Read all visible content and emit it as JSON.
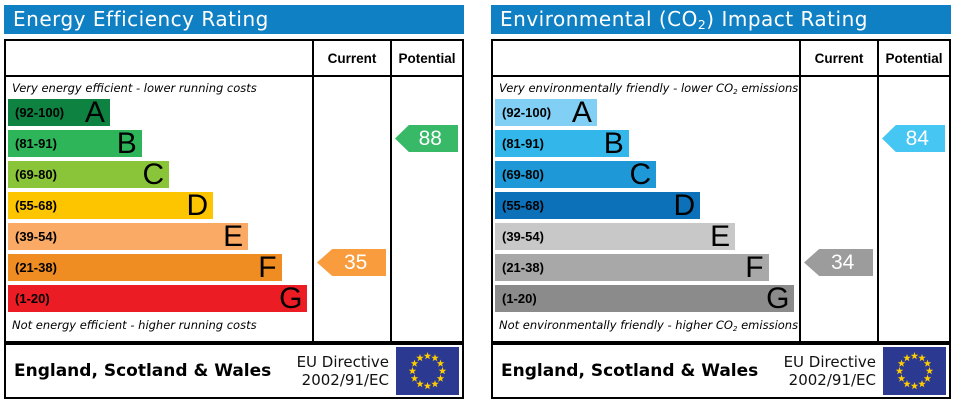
{
  "colors": {
    "header_bg": "#1080c4",
    "header_text": "#ffffff",
    "eu_flag_bg": "#2b3990",
    "eu_flag_star": "#ffcc00"
  },
  "panels": [
    {
      "title_pre": "Energy Efficiency Rating",
      "title_sub": "",
      "title_post": "",
      "columns": {
        "current": "Current",
        "potential": "Potential"
      },
      "top_hint_pre": "Very energy efficient - lower running costs",
      "top_hint_sub": "",
      "top_hint_post": "",
      "bottom_hint_pre": "Not energy efficient - higher running costs",
      "bottom_hint_sub": "",
      "bottom_hint_post": "",
      "bands": [
        {
          "range": "(92-100)",
          "letter": "A",
          "color": "#0e8240",
          "width_pct": 33.5
        },
        {
          "range": "(81-91)",
          "letter": "B",
          "color": "#2eb559",
          "width_pct": 44
        },
        {
          "range": "(69-80)",
          "letter": "C",
          "color": "#8ac539",
          "width_pct": 53
        },
        {
          "range": "(55-68)",
          "letter": "D",
          "color": "#fdc400",
          "width_pct": 67.5
        },
        {
          "range": "(39-54)",
          "letter": "E",
          "color": "#fbaa65",
          "width_pct": 79
        },
        {
          "range": "(21-38)",
          "letter": "F",
          "color": "#ef8d22",
          "width_pct": 90
        },
        {
          "range": "(1-20)",
          "letter": "G",
          "color": "#ec1c24",
          "width_pct": 98.5
        }
      ],
      "current": {
        "value": "35",
        "color": "#f89c3d",
        "band_index": 5
      },
      "potential": {
        "value": "88",
        "color": "#37b968",
        "band_index": 1
      },
      "footer": {
        "region": "England, Scotland & Wales",
        "directive_line1": "EU Directive",
        "directive_line2": "2002/91/EC"
      }
    },
    {
      "title_pre": "Environmental (CO",
      "title_sub": "2",
      "title_post": ") Impact Rating",
      "columns": {
        "current": "Current",
        "potential": "Potential"
      },
      "top_hint_pre": "Very environmentally friendly - lower CO",
      "top_hint_sub": "2",
      "top_hint_post": " emissions",
      "bottom_hint_pre": "Not environmentally friendly - higher CO",
      "bottom_hint_sub": "2",
      "bottom_hint_post": " emissions",
      "bands": [
        {
          "range": "(92-100)",
          "letter": "A",
          "color": "#81cff4",
          "width_pct": 33.5
        },
        {
          "range": "(81-91)",
          "letter": "B",
          "color": "#33b7ea",
          "width_pct": 44
        },
        {
          "range": "(69-80)",
          "letter": "C",
          "color": "#1e98d6",
          "width_pct": 53
        },
        {
          "range": "(55-68)",
          "letter": "D",
          "color": "#0d71b9",
          "width_pct": 67.5
        },
        {
          "range": "(39-54)",
          "letter": "E",
          "color": "#c8c8c8",
          "width_pct": 79
        },
        {
          "range": "(21-38)",
          "letter": "F",
          "color": "#a8a8a8",
          "width_pct": 90
        },
        {
          "range": "(1-20)",
          "letter": "G",
          "color": "#8b8b8b",
          "width_pct": 98.5
        }
      ],
      "current": {
        "value": "34",
        "color": "#9c9c9c",
        "band_index": 5
      },
      "potential": {
        "value": "84",
        "color": "#45c6f3",
        "band_index": 1
      },
      "footer": {
        "region": "England, Scotland & Wales",
        "directive_line1": "EU Directive",
        "directive_line2": "2002/91/EC"
      }
    }
  ],
  "chart_data": [
    {
      "type": "bar",
      "title": "Energy Efficiency Rating",
      "categories": [
        "A",
        "B",
        "C",
        "D",
        "E",
        "F",
        "G"
      ],
      "band_ranges": [
        "92-100",
        "81-91",
        "69-80",
        "55-68",
        "39-54",
        "21-38",
        "1-20"
      ],
      "values": [
        33.5,
        44,
        53,
        67.5,
        79,
        90,
        98.5
      ],
      "current": 35,
      "current_band": "F",
      "potential": 88,
      "potential_band": "B",
      "top_label": "Very energy efficient - lower running costs",
      "bottom_label": "Not energy efficient - higher running costs",
      "region": "England, Scotland & Wales",
      "directive": "EU Directive 2002/91/EC"
    },
    {
      "type": "bar",
      "title": "Environmental (CO2) Impact Rating",
      "categories": [
        "A",
        "B",
        "C",
        "D",
        "E",
        "F",
        "G"
      ],
      "band_ranges": [
        "92-100",
        "81-91",
        "69-80",
        "55-68",
        "39-54",
        "21-38",
        "1-20"
      ],
      "values": [
        33.5,
        44,
        53,
        67.5,
        79,
        90,
        98.5
      ],
      "current": 34,
      "current_band": "F",
      "potential": 84,
      "potential_band": "B",
      "top_label": "Very environmentally friendly - lower CO2 emissions",
      "bottom_label": "Not environmentally friendly - higher CO2 emissions",
      "region": "England, Scotland & Wales",
      "directive": "EU Directive 2002/91/EC"
    }
  ]
}
